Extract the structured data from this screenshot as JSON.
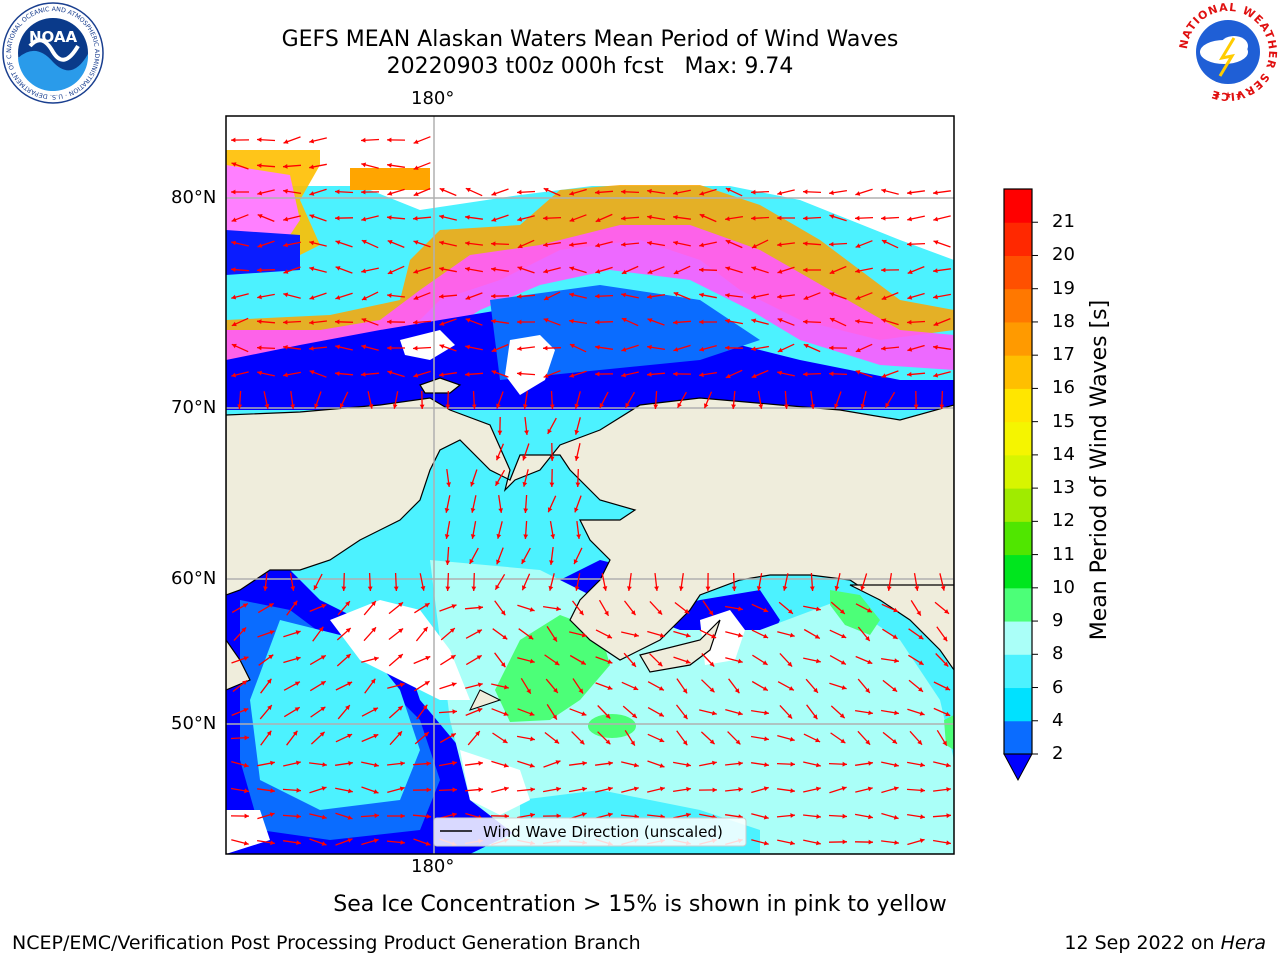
{
  "title": {
    "line1": "GEFS MEAN Alaskan Waters Mean Period of Wind Waves",
    "line2": "20220903 t00z 000h fcst   Max: 9.74"
  },
  "map": {
    "lon_labels": {
      "top": "180°",
      "bottom": "180°"
    },
    "lat_labels": [
      "80°N",
      "70°N",
      "60°N",
      "50°N"
    ],
    "legend_label": "Wind Wave Direction (unscaled)",
    "colors": {
      "land": "#efeddc",
      "coast": "#000000",
      "grid": "#b0b0b0",
      "arrow": "#ff0000",
      "no_data": "#ffffff"
    }
  },
  "colorbar": {
    "label": "Mean Period of Wind Waves [s]",
    "ticks": [
      "2",
      "4",
      "6",
      "8",
      "9",
      "10",
      "11",
      "12",
      "13",
      "14",
      "15",
      "16",
      "17",
      "18",
      "19",
      "20",
      "21"
    ],
    "under_color": "#0000ff",
    "colors": [
      "#0a6cff",
      "#00e1ff",
      "#4cf2ff",
      "#aafff8",
      "#4cff78",
      "#00e61e",
      "#50e600",
      "#a0eb00",
      "#d7f500",
      "#f5f500",
      "#ffe600",
      "#ffbf00",
      "#ff9a00",
      "#ff7800",
      "#ff5000",
      "#ff2800",
      "#ff0000"
    ]
  },
  "sea_ice_note": "Sea Ice Concentration > 15% is shown in pink to yellow",
  "footer": {
    "left": "NCEP/EMC/Verification Post Processing Product Generation Branch",
    "right_prefix": "12 Sep 2022 on ",
    "right_machine": "Hera"
  },
  "logos": {
    "noaa": "NOAA",
    "nws": "NATIONAL WEATHER SERVICE",
    "noaa_ring": "NATIONAL OCEANIC AND ATMOSPHERIC ADMINISTRATION · U.S. DEPARTMENT OF COMMERCE"
  }
}
